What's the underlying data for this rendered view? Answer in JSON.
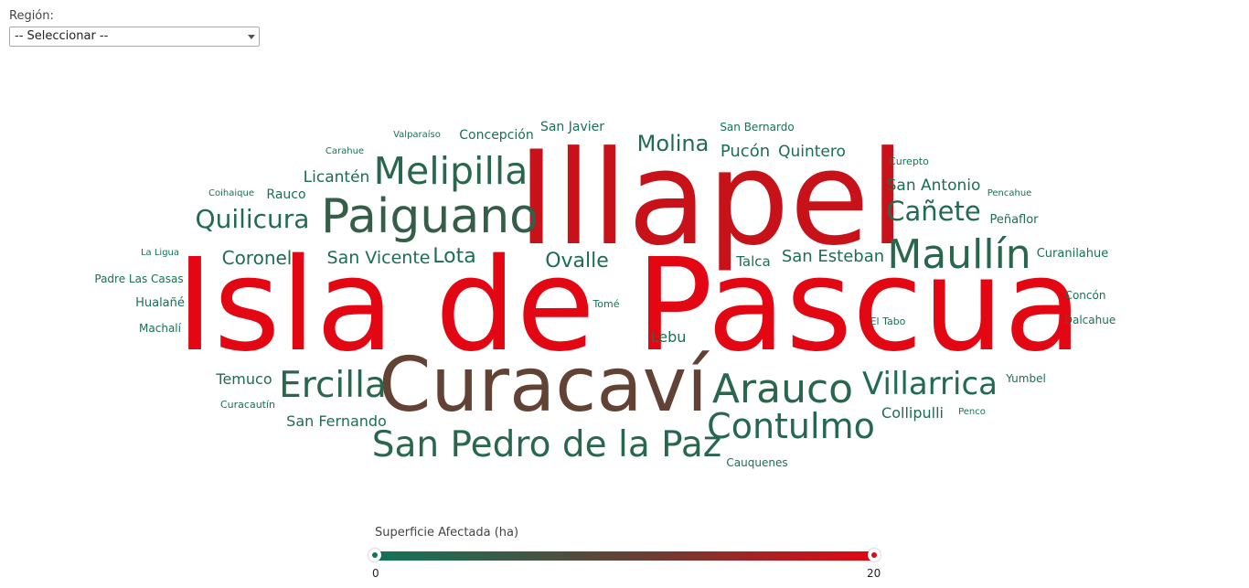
{
  "filter": {
    "label": "Región:",
    "selected": "-- Seleccionar --"
  },
  "legend": {
    "title": "Superficie Afectada (ha)",
    "min": 0,
    "max": 20,
    "min_label": "0",
    "max_label": "20",
    "color_low": "#107558",
    "color_high": "#e30613"
  },
  "chart_data": {
    "type": "wordcloud",
    "color_scale": [
      "#107558",
      "#e30613"
    ],
    "value_range": [
      0,
      20
    ],
    "words": [
      {
        "text": "Isla de Pascua",
        "value": 20
      },
      {
        "text": "Illapel",
        "value": 18
      },
      {
        "text": "Curacaví",
        "value": 10
      },
      {
        "text": "Paiguano",
        "value": 4.5
      },
      {
        "text": "San Pedro de la Paz",
        "value": 3
      },
      {
        "text": "Arauco",
        "value": 3
      },
      {
        "text": "Maullín",
        "value": 3
      },
      {
        "text": "Contulmo",
        "value": 2.5
      },
      {
        "text": "Melipilla",
        "value": 3
      },
      {
        "text": "Ercilla",
        "value": 3
      },
      {
        "text": "Villarrica",
        "value": 2
      },
      {
        "text": "Quilicura",
        "value": 2
      },
      {
        "text": "Cañete",
        "value": 2
      },
      {
        "text": "Molina",
        "value": 2
      },
      {
        "text": "Coronel",
        "value": 1.5
      },
      {
        "text": "Lota",
        "value": 1.5
      },
      {
        "text": "Ovalle",
        "value": 1.5
      },
      {
        "text": "San Vicente",
        "value": 1.5
      },
      {
        "text": "San Esteban",
        "value": 1.5
      },
      {
        "text": "Licantén",
        "value": 1.5
      },
      {
        "text": "Pucón",
        "value": 1.5
      },
      {
        "text": "Quintero",
        "value": 1.5
      },
      {
        "text": "San Antonio",
        "value": 1.5
      },
      {
        "text": "Temuco",
        "value": 1.5
      },
      {
        "text": "San Fernando",
        "value": 1.5
      },
      {
        "text": "Collipulli",
        "value": 1.5
      },
      {
        "text": "Concepción",
        "value": 1.2
      },
      {
        "text": "Lebu",
        "value": 1.2
      },
      {
        "text": "Talca",
        "value": 1.2
      },
      {
        "text": "Peñaflor",
        "value": 1.2
      },
      {
        "text": "Rauco",
        "value": 1.2
      },
      {
        "text": "San Javier",
        "value": 1
      },
      {
        "text": "Curanilahue",
        "value": 1
      },
      {
        "text": "Padre Las Casas",
        "value": 1
      },
      {
        "text": "Hualañé",
        "value": 1
      },
      {
        "text": "Machalí",
        "value": 1
      },
      {
        "text": "Concón",
        "value": 1
      },
      {
        "text": "Dalcahue",
        "value": 1
      },
      {
        "text": "Yumbel",
        "value": 1
      },
      {
        "text": "Cauquenes",
        "value": 1
      },
      {
        "text": "San Bernardo",
        "value": 0.8
      },
      {
        "text": "Curepto",
        "value": 0.8
      },
      {
        "text": "El Tabo",
        "value": 0.8
      },
      {
        "text": "Tomé",
        "value": 0.8
      },
      {
        "text": "Curacautín",
        "value": 0.8
      },
      {
        "text": "Valparaíso",
        "value": 0.6
      },
      {
        "text": "Carahue",
        "value": 0.6
      },
      {
        "text": "Coihaique",
        "value": 0.6
      },
      {
        "text": "La Ligua",
        "value": 0.6
      },
      {
        "text": "Pencahue",
        "value": 0.6
      },
      {
        "text": "Penco",
        "value": 0.6
      }
    ]
  }
}
